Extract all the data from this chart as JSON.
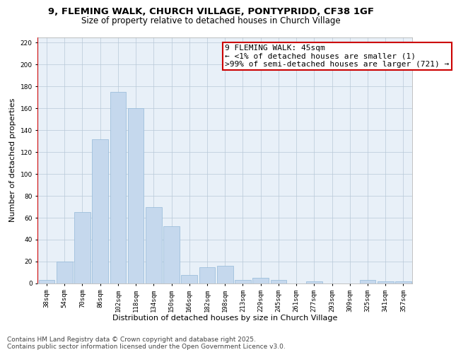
{
  "title1": "9, FLEMING WALK, CHURCH VILLAGE, PONTYPRIDD, CF38 1GF",
  "title2": "Size of property relative to detached houses in Church Village",
  "xlabel": "Distribution of detached houses by size in Church Village",
  "ylabel": "Number of detached properties",
  "categories": [
    "38sqm",
    "54sqm",
    "70sqm",
    "86sqm",
    "102sqm",
    "118sqm",
    "134sqm",
    "150sqm",
    "166sqm",
    "182sqm",
    "198sqm",
    "213sqm",
    "229sqm",
    "245sqm",
    "261sqm",
    "277sqm",
    "293sqm",
    "309sqm",
    "325sqm",
    "341sqm",
    "357sqm"
  ],
  "values": [
    3,
    20,
    65,
    132,
    175,
    160,
    70,
    52,
    8,
    15,
    16,
    3,
    5,
    3,
    0,
    2,
    0,
    0,
    3,
    2,
    2
  ],
  "bar_color": "#c5d8ed",
  "bar_edge_color": "#93b8d8",
  "annotation_line1": "9 FLEMING WALK: 45sqm",
  "annotation_line2": "← <1% of detached houses are smaller (1)",
  "annotation_line3": ">99% of semi-detached houses are larger (721) →",
  "annotation_box_facecolor": "#ffffff",
  "annotation_box_edgecolor": "#cc0000",
  "red_line_color": "#cc0000",
  "ylim": [
    0,
    225
  ],
  "yticks": [
    0,
    20,
    40,
    60,
    80,
    100,
    120,
    140,
    160,
    180,
    200,
    220
  ],
  "footer_line1": "Contains HM Land Registry data © Crown copyright and database right 2025.",
  "footer_line2": "Contains public sector information licensed under the Open Government Licence v3.0.",
  "fig_facecolor": "#ffffff",
  "plot_facecolor": "#e8f0f8",
  "grid_color": "#b8c8d8",
  "title1_fontsize": 9.5,
  "title2_fontsize": 8.5,
  "axis_label_fontsize": 8,
  "tick_fontsize": 6.5,
  "annotation_fontsize": 8,
  "footer_fontsize": 6.5
}
